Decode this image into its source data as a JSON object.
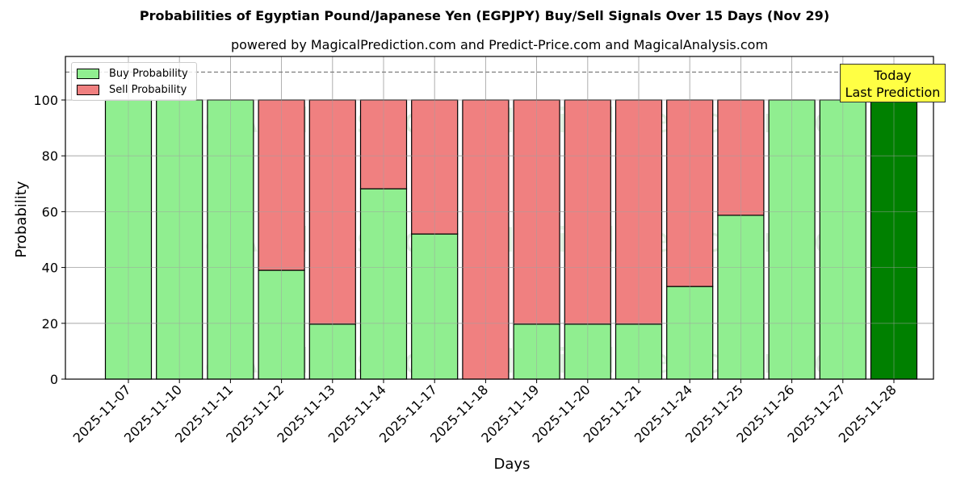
{
  "chart_data": {
    "type": "bar",
    "stacked": true,
    "title": "Probabilities of Egyptian Pound/Japanese Yen (EGPJPY) Buy/Sell Signals Over 15 Days (Nov 29)",
    "subtitle": "powered by MagicalPrediction.com and Predict-Price.com and MagicalAnalysis.com",
    "xlabel": "Days",
    "ylabel": "Probability",
    "ylim": [
      0,
      115.6
    ],
    "yticks": [
      0,
      20,
      40,
      60,
      80,
      100
    ],
    "grid": true,
    "legend_position": "upper left",
    "categories": [
      "2025-11-07",
      "2025-11-10",
      "2025-11-11",
      "2025-11-12",
      "2025-11-13",
      "2025-11-14",
      "2025-11-17",
      "2025-11-18",
      "2025-11-19",
      "2025-11-20",
      "2025-11-21",
      "2025-11-24",
      "2025-11-25",
      "2025-11-26",
      "2025-11-27",
      "2025-11-28"
    ],
    "series": [
      {
        "name": "Buy Probability",
        "color": "#90ee90",
        "values": [
          100,
          100,
          100,
          39,
          19.7,
          68.2,
          52,
          0,
          19.7,
          19.7,
          19.7,
          33.2,
          58.7,
          100,
          100,
          100
        ]
      },
      {
        "name": "Sell Probability",
        "color": "#f08080",
        "values": [
          0,
          0,
          0,
          61,
          80.3,
          31.8,
          48,
          100,
          80.3,
          80.3,
          80.3,
          66.8,
          41.3,
          0,
          0,
          0
        ]
      }
    ],
    "highlight": {
      "index": 15,
      "color": "#008000"
    },
    "reference_line": {
      "y": 110,
      "style": "dashed",
      "color": "#808080"
    },
    "annotation": {
      "line1": "Today",
      "line2": "Last Prediction",
      "background": "#ffff44"
    },
    "watermarks": [
      "MagicalAnalysis.com",
      "MagicalPrediction.com"
    ]
  }
}
